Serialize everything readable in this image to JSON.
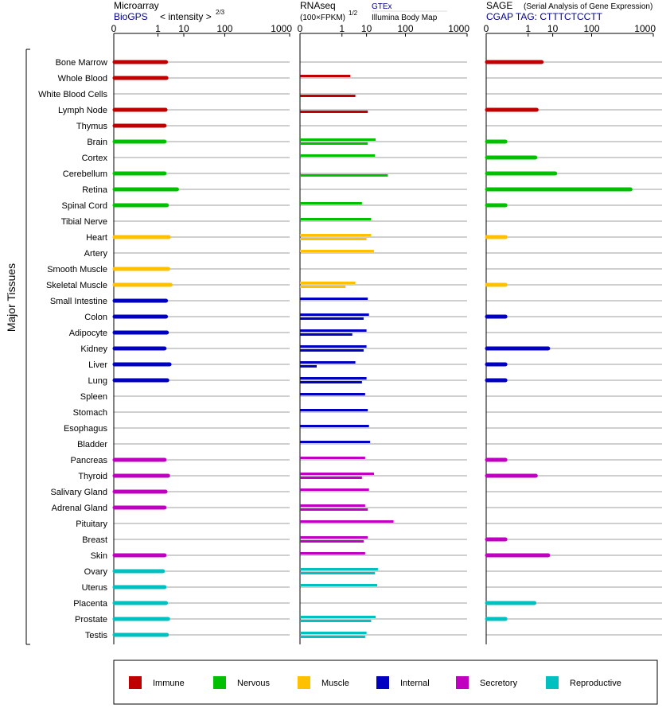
{
  "colors": {
    "Immune": "#c00000",
    "Nervous": "#00c000",
    "Muscle": "#ffc000",
    "Internal": "#0000c0",
    "Secretory": "#c000c0",
    "Reproductive": "#00c0c0",
    "link": "#00008b",
    "axis": "#000000",
    "rowline": "#7f7f7f"
  },
  "y_axis_label": "Major Tissues",
  "axis_ticks": [
    "0",
    "1",
    "10",
    "100",
    "1000"
  ],
  "panel_headers": {
    "microarray": {
      "title": "Microarray",
      "source": "BioGPS",
      "measure": "< intensity >",
      "exponent": "2/3"
    },
    "rnaseq": {
      "title": "RNAseq",
      "unit": "(100×FPKM)",
      "exponent": "1/2",
      "source_top": "GTEx",
      "source_bottom": "Illumina Body Map"
    },
    "sage": {
      "title": "SAGE",
      "subtitle": "(Serial Analysis of Gene Expression)",
      "tag": "CGAP TAG: CTTTCTCCTT"
    }
  },
  "legend": [
    "Immune",
    "Nervous",
    "Muscle",
    "Internal",
    "Secretory",
    "Reproductive"
  ],
  "chart_data": {
    "type": "bar",
    "x_scale": "power (tick labels 0, 1, 10, 100, 1000)",
    "xlim": [
      0,
      1000
    ],
    "tissues": [
      {
        "name": "Bone Marrow",
        "group": "Immune",
        "microarray": 2.3,
        "gtex": null,
        "ibm": null,
        "sage": 4
      },
      {
        "name": "Whole Blood",
        "group": "Immune",
        "microarray": 2.4,
        "gtex": 2.5,
        "ibm": null,
        "sage": null
      },
      {
        "name": "White Blood Cells",
        "group": "Immune",
        "microarray": null,
        "gtex": null,
        "ibm": 4,
        "sage": null
      },
      {
        "name": "Lymph Node",
        "group": "Immune",
        "microarray": 2.2,
        "gtex": null,
        "ibm": 11,
        "sage": 2.5
      },
      {
        "name": "Thymus",
        "group": "Immune",
        "microarray": 2.0,
        "gtex": null,
        "ibm": null,
        "sage": null
      },
      {
        "name": "Brain",
        "group": "Nervous",
        "microarray": 2.0,
        "gtex": 19,
        "ibm": 11,
        "sage": 0.02
      },
      {
        "name": "Cortex",
        "group": "Nervous",
        "microarray": null,
        "gtex": 18,
        "ibm": null,
        "sage": 2.2
      },
      {
        "name": "Cerebellum",
        "group": "Nervous",
        "microarray": 2.0,
        "gtex": null,
        "ibm": 40,
        "sage": 12
      },
      {
        "name": "Retina",
        "group": "Nervous",
        "microarray": 6,
        "gtex": null,
        "ibm": null,
        "sage": 480
      },
      {
        "name": "Spinal Cord",
        "group": "Nervous",
        "microarray": 2.5,
        "gtex": 7,
        "ibm": null,
        "sage": 0.02
      },
      {
        "name": "Tibial Nerve",
        "group": "Nervous",
        "microarray": null,
        "gtex": 14,
        "ibm": null,
        "sage": null
      },
      {
        "name": "Heart",
        "group": "Muscle",
        "microarray": 3.0,
        "gtex": 14,
        "ibm": 10,
        "sage": 0.02
      },
      {
        "name": "Artery",
        "group": "Muscle",
        "microarray": null,
        "gtex": 17,
        "ibm": null,
        "sage": null
      },
      {
        "name": "Smooth Muscle",
        "group": "Muscle",
        "microarray": 2.8,
        "gtex": null,
        "ibm": null,
        "sage": null
      },
      {
        "name": "Skeletal Muscle",
        "group": "Muscle",
        "microarray": 3.5,
        "gtex": 4,
        "ibm": 1.5,
        "sage": 0.02
      },
      {
        "name": "Small Intestine",
        "group": "Internal",
        "microarray": 2.3,
        "gtex": 11,
        "ibm": null,
        "sage": null
      },
      {
        "name": "Colon",
        "group": "Internal",
        "microarray": 2.3,
        "gtex": 12,
        "ibm": 8,
        "sage": 0.02
      },
      {
        "name": "Adipocyte",
        "group": "Internal",
        "microarray": 2.5,
        "gtex": 10,
        "ibm": 3,
        "sage": null
      },
      {
        "name": "Kidney",
        "group": "Internal",
        "microarray": 2.0,
        "gtex": 10,
        "ibm": 8,
        "sage": 7
      },
      {
        "name": "Liver",
        "group": "Internal",
        "microarray": 3.2,
        "gtex": 4,
        "ibm": 0.01,
        "sage": 0.02
      },
      {
        "name": "Lung",
        "group": "Internal",
        "microarray": 2.6,
        "gtex": 10,
        "ibm": 7,
        "sage": 0.02
      },
      {
        "name": "Spleen",
        "group": "Internal",
        "microarray": null,
        "gtex": 9,
        "ibm": null,
        "sage": null
      },
      {
        "name": "Stomach",
        "group": "Internal",
        "microarray": null,
        "gtex": 11,
        "ibm": null,
        "sage": null
      },
      {
        "name": "Esophagus",
        "group": "Internal",
        "microarray": null,
        "gtex": 12,
        "ibm": null,
        "sage": null
      },
      {
        "name": "Bladder",
        "group": "Internal",
        "microarray": null,
        "gtex": 13,
        "ibm": null,
        "sage": null
      },
      {
        "name": "Pancreas",
        "group": "Secretory",
        "microarray": 2.0,
        "gtex": 9,
        "ibm": null,
        "sage": 0.02
      },
      {
        "name": "Thyroid",
        "group": "Secretory",
        "microarray": 2.8,
        "gtex": 17,
        "ibm": 7,
        "sage": 2.3
      },
      {
        "name": "Salivary Gland",
        "group": "Secretory",
        "microarray": 2.2,
        "gtex": 12,
        "ibm": null,
        "sage": null
      },
      {
        "name": "Adrenal Gland",
        "group": "Secretory",
        "microarray": 2.0,
        "gtex": 9,
        "ibm": 11,
        "sage": null
      },
      {
        "name": "Pituitary",
        "group": "Secretory",
        "microarray": null,
        "gtex": 55,
        "ibm": null,
        "sage": null
      },
      {
        "name": "Breast",
        "group": "Secretory",
        "microarray": null,
        "gtex": 11,
        "ibm": 8,
        "sage": 0.02
      },
      {
        "name": "Skin",
        "group": "Secretory",
        "microarray": 2.0,
        "gtex": 9,
        "ibm": null,
        "sage": 7
      },
      {
        "name": "Ovary",
        "group": "Reproductive",
        "microarray": 1.7,
        "gtex": 22,
        "ibm": 18,
        "sage": null
      },
      {
        "name": "Uterus",
        "group": "Reproductive",
        "microarray": 2.0,
        "gtex": 21,
        "ibm": null,
        "sage": null
      },
      {
        "name": "Placenta",
        "group": "Reproductive",
        "microarray": 2.3,
        "gtex": null,
        "ibm": null,
        "sage": 2.0
      },
      {
        "name": "Prostate",
        "group": "Reproductive",
        "microarray": 2.8,
        "gtex": 19,
        "ibm": 14,
        "sage": 0.02
      },
      {
        "name": "Testis",
        "group": "Reproductive",
        "microarray": 2.5,
        "gtex": 10,
        "ibm": 9,
        "sage": null
      }
    ]
  }
}
